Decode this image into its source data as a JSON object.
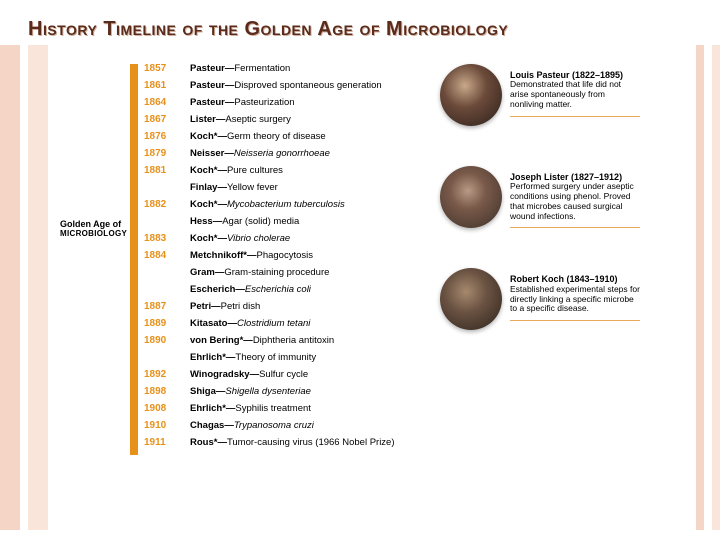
{
  "title": "History Timeline of the Golden Age of Microbiology",
  "leftLabel": {
    "line1": "Golden Age of",
    "line2": "MICROBIOLOGY"
  },
  "timeline": [
    {
      "year": "1857",
      "name": "Pasteur",
      "work": "Fermentation"
    },
    {
      "year": "1861",
      "name": "Pasteur",
      "work": "Disproved spontaneous generation"
    },
    {
      "year": "1864",
      "name": "Pasteur",
      "work": "Pasteurization"
    },
    {
      "year": "1867",
      "name": "Lister",
      "work": "Aseptic surgery"
    },
    {
      "year": "1876",
      "name": "Koch*",
      "work": "Germ theory of disease"
    },
    {
      "year": "1879",
      "name": "Neisser",
      "work": "Neisseria gonorrhoeae",
      "italic": true
    },
    {
      "year": "1881",
      "name": "Koch*",
      "work": "Pure cultures"
    },
    {
      "year": "",
      "name": "Finlay",
      "work": "Yellow fever"
    },
    {
      "year": "1882",
      "name": "Koch*",
      "work": "Mycobacterium tuberculosis",
      "italic": true
    },
    {
      "year": "",
      "name": "Hess",
      "work": "Agar (solid) media"
    },
    {
      "year": "1883",
      "name": "Koch*",
      "work": "Vibrio cholerae",
      "italic": true
    },
    {
      "year": "1884",
      "name": "Metchnikoff*",
      "work": "Phagocytosis"
    },
    {
      "year": "",
      "name": "Gram",
      "work": "Gram-staining procedure"
    },
    {
      "year": "",
      "name": "Escherich",
      "work": "Escherichia coli",
      "italic": true
    },
    {
      "year": "1887",
      "name": "Petri",
      "work": "Petri dish"
    },
    {
      "year": "1889",
      "name": "Kitasato",
      "work": "Clostridium tetani",
      "italic": true
    },
    {
      "year": "1890",
      "name": "von Bering*",
      "work": "Diphtheria antitoxin"
    },
    {
      "year": "",
      "name": "Ehrlich*",
      "work": "Theory of immunity"
    },
    {
      "year": "1892",
      "name": "Winogradsky",
      "work": "Sulfur cycle"
    },
    {
      "year": "1898",
      "name": "Shiga",
      "work": "Shigella dysenteriae",
      "italic": true
    },
    {
      "year": "1908",
      "name": "Ehrlich*",
      "work": "Syphilis treatment"
    },
    {
      "year": "1910",
      "name": "Chagas",
      "work": "Trypanosoma cruzi",
      "italic": true
    },
    {
      "year": "1911",
      "name": "Rous*",
      "work": "Tumor-causing virus (1966 Nobel Prize)"
    }
  ],
  "people": [
    {
      "name": "Louis Pasteur (1822–1895)",
      "desc": "Demonstrated that life did not arise spontaneously from nonliving matter.",
      "pclass": "p1"
    },
    {
      "name": "Joseph Lister (1827–1912)",
      "desc": "Performed surgery under aseptic conditions using phenol. Proved that microbes caused surgical wound infections.",
      "pclass": "p2"
    },
    {
      "name": "Robert Koch (1843–1910)",
      "desc": "Established experimental steps for directly linking a specific microbe to a specific disease.",
      "pclass": "p3"
    }
  ],
  "colors": {
    "title": "#5a2a1a",
    "accent": "#e8911a",
    "stripeLight": "#f9e5da",
    "stripeDark": "#f5d5c5"
  }
}
